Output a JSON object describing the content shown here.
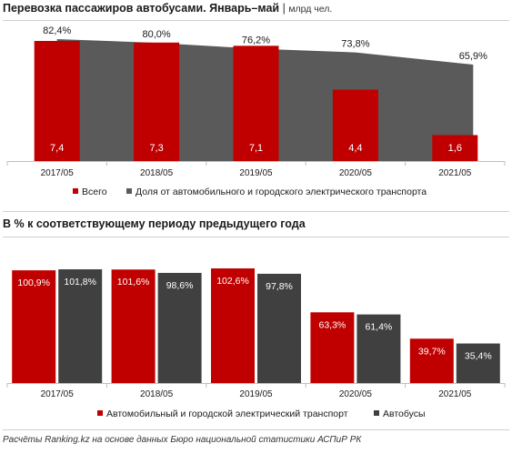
{
  "chart_data": [
    {
      "type": "bar",
      "title": "Перевозка пассажиров автобусами. Январь–май",
      "title_separator": "|",
      "unit": "млрд чел.",
      "categories": [
        "2017/05",
        "2018/05",
        "2019/05",
        "2020/05",
        "2021/05"
      ],
      "series": [
        {
          "name": "Всего",
          "kind": "bar",
          "values": [
            7.4,
            7.3,
            7.1,
            4.4,
            1.6
          ],
          "value_labels": [
            "7,4",
            "7,3",
            "7,1",
            "4,4",
            "1,6"
          ],
          "color": "#c00000"
        },
        {
          "name": "Доля от автомобильного и городского электрического транспорта",
          "kind": "area",
          "values": [
            82.4,
            80.0,
            76.2,
            73.8,
            65.9
          ],
          "value_labels": [
            "82,4%",
            "80,0%",
            "76,2%",
            "73,8%",
            "65,9%"
          ],
          "color": "#5a5a5a"
        }
      ],
      "legend_position": "bottom",
      "grid": false
    },
    {
      "type": "bar",
      "title": "В % к соответствующему периоду предыдущего года",
      "categories": [
        "2017/05",
        "2018/05",
        "2019/05",
        "2020/05",
        "2021/05"
      ],
      "series": [
        {
          "name": "Автомобильный и  городской электрический транспорт",
          "values": [
            100.9,
            101.6,
            102.6,
            63.3,
            39.7
          ],
          "value_labels": [
            "100,9%",
            "101,6%",
            "102,6%",
            "63,3%",
            "39,7%"
          ],
          "color": "#c00000"
        },
        {
          "name": "Автобусы",
          "values": [
            101.8,
            98.6,
            97.8,
            61.4,
            35.4
          ],
          "value_labels": [
            "101,8%",
            "98,6%",
            "97,8%",
            "61,4%",
            "35,4%"
          ],
          "color": "#404040"
        }
      ],
      "legend_position": "bottom",
      "grid": false
    }
  ],
  "source": "Расчёты Ranking.kz на основе данных  Бюро национальной  статистики АСПиР РК"
}
